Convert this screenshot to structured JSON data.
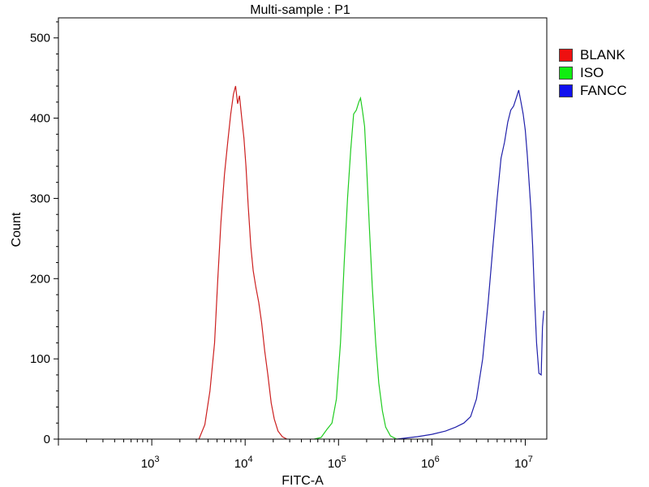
{
  "chart_data": {
    "type": "line",
    "title": "Multi-sample : P1",
    "xlabel": "FITC-A",
    "ylabel": "Count",
    "x_scale": "log",
    "xlim": [
      100,
      17000000
    ],
    "ylim": [
      0,
      525
    ],
    "x_ticks": [
      {
        "value": 1000,
        "base": "10",
        "exp": "3"
      },
      {
        "value": 10000,
        "base": "10",
        "exp": "4"
      },
      {
        "value": 100000,
        "base": "10",
        "exp": "5"
      },
      {
        "value": 1000000,
        "base": "10",
        "exp": "6"
      },
      {
        "value": 10000000,
        "base": "10",
        "exp": "7"
      }
    ],
    "y_ticks": [
      0,
      100,
      200,
      300,
      400,
      500
    ],
    "grid": false,
    "legend_position": "right",
    "series": [
      {
        "name": "BLANK",
        "color": "#cc2020",
        "points": [
          [
            3200,
            0
          ],
          [
            3700,
            18
          ],
          [
            4200,
            60
          ],
          [
            4700,
            120
          ],
          [
            5100,
            200
          ],
          [
            5500,
            270
          ],
          [
            6000,
            330
          ],
          [
            6500,
            370
          ],
          [
            7000,
            405
          ],
          [
            7500,
            430
          ],
          [
            7900,
            440
          ],
          [
            8300,
            418
          ],
          [
            8700,
            428
          ],
          [
            9200,
            400
          ],
          [
            9700,
            375
          ],
          [
            10200,
            340
          ],
          [
            10800,
            290
          ],
          [
            11500,
            240
          ],
          [
            12200,
            210
          ],
          [
            13000,
            190
          ],
          [
            14000,
            170
          ],
          [
            15000,
            145
          ],
          [
            16200,
            110
          ],
          [
            17500,
            80
          ],
          [
            19000,
            45
          ],
          [
            20500,
            25
          ],
          [
            22500,
            10
          ],
          [
            25000,
            3
          ],
          [
            28000,
            0
          ]
        ]
      },
      {
        "name": "ISO",
        "color": "#20cc20",
        "points": [
          [
            55000,
            0
          ],
          [
            65000,
            2
          ],
          [
            75000,
            12
          ],
          [
            85000,
            20
          ],
          [
            95000,
            50
          ],
          [
            105000,
            120
          ],
          [
            115000,
            220
          ],
          [
            125000,
            300
          ],
          [
            135000,
            360
          ],
          [
            145000,
            405
          ],
          [
            155000,
            410
          ],
          [
            165000,
            420
          ],
          [
            172000,
            425
          ],
          [
            180000,
            410
          ],
          [
            190000,
            390
          ],
          [
            200000,
            340
          ],
          [
            215000,
            260
          ],
          [
            230000,
            190
          ],
          [
            250000,
            120
          ],
          [
            270000,
            70
          ],
          [
            295000,
            35
          ],
          [
            320000,
            15
          ],
          [
            360000,
            4
          ],
          [
            420000,
            0
          ]
        ]
      },
      {
        "name": "FANCC",
        "color": "#2020aa",
        "points": [
          [
            420000,
            0
          ],
          [
            700000,
            3
          ],
          [
            1000000,
            6
          ],
          [
            1400000,
            10
          ],
          [
            1800000,
            15
          ],
          [
            2200000,
            20
          ],
          [
            2600000,
            28
          ],
          [
            3000000,
            50
          ],
          [
            3500000,
            100
          ],
          [
            4000000,
            170
          ],
          [
            4500000,
            240
          ],
          [
            5000000,
            300
          ],
          [
            5500000,
            350
          ],
          [
            6000000,
            370
          ],
          [
            6500000,
            395
          ],
          [
            7000000,
            410
          ],
          [
            7500000,
            415
          ],
          [
            8000000,
            425
          ],
          [
            8500000,
            435
          ],
          [
            9000000,
            420
          ],
          [
            9500000,
            405
          ],
          [
            10000000,
            385
          ],
          [
            10500000,
            355
          ],
          [
            11000000,
            320
          ],
          [
            11500000,
            285
          ],
          [
            12000000,
            240
          ],
          [
            12500000,
            185
          ],
          [
            13200000,
            120
          ],
          [
            14000000,
            82
          ],
          [
            14800000,
            80
          ],
          [
            15300000,
            140
          ],
          [
            15800000,
            160
          ]
        ]
      }
    ]
  }
}
